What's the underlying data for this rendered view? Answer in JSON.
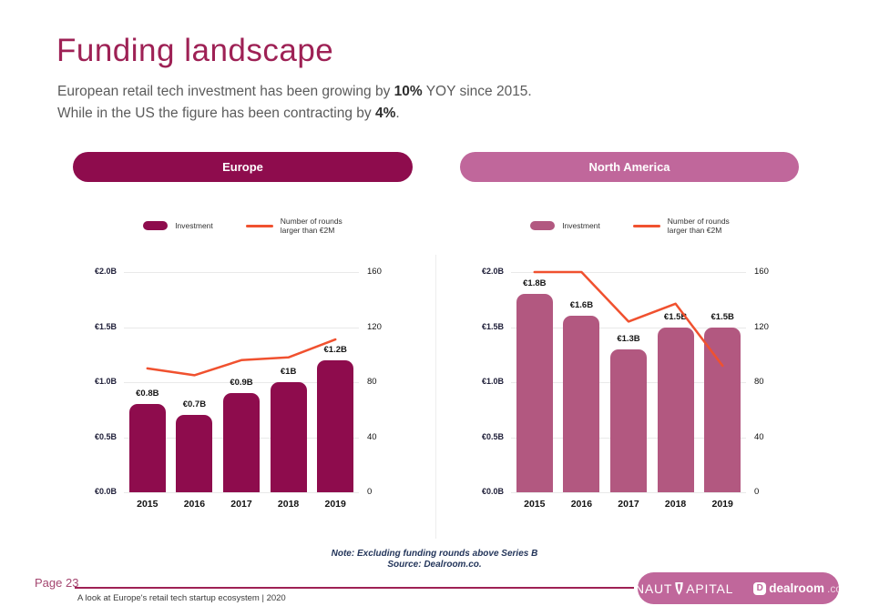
{
  "theme": {
    "title_color": "#9E2155",
    "europe_color": "#8E0C4D",
    "north_america_color": "#C0679B",
    "line_color": "#F0512F",
    "footer_rule_color": "#9E2155",
    "page_label_color": "#A44670"
  },
  "header": {
    "title": "Funding landscape",
    "subtitle_line1_prefix": "European retail tech investment has been growing by ",
    "subtitle_line1_bold": "10%",
    "subtitle_line1_suffix": " YOY since 2015.",
    "subtitle_line2_prefix": "While in the US the figure has been contracting by ",
    "subtitle_line2_bold": "4%",
    "subtitle_line2_suffix": "."
  },
  "chart_data": [
    {
      "type": "bar+line",
      "region": "Europe",
      "categories": [
        "2015",
        "2016",
        "2017",
        "2018",
        "2019"
      ],
      "series": [
        {
          "name": "Investment",
          "type": "bar",
          "unit": "EUR billions",
          "values": [
            0.8,
            0.7,
            0.9,
            1.0,
            1.2
          ],
          "labels": [
            "€0.8B",
            "€0.7B",
            "€0.9B",
            "€1B",
            "€1.2B"
          ],
          "color": "#8E0C4D",
          "axis": "left"
        },
        {
          "name": "Number of rounds larger than €2M",
          "type": "line",
          "values": [
            90,
            85,
            96,
            98,
            111
          ],
          "color": "#F0512F",
          "axis": "right"
        }
      ],
      "legend": {
        "bar": "Investment",
        "line_l1": "Number of rounds",
        "line_l2": "larger than €2M"
      },
      "left_axis": {
        "ticks": [
          "€2.0B",
          "€1.5B",
          "€1.0B",
          "€0.5B",
          "€0.0B"
        ],
        "max": 2.0,
        "min": 0
      },
      "right_axis": {
        "ticks": [
          "160",
          "120",
          "80",
          "40",
          "0"
        ],
        "max": 160,
        "min": 0
      },
      "grid": true
    },
    {
      "type": "bar+line",
      "region": "North America",
      "categories": [
        "2015",
        "2016",
        "2017",
        "2018",
        "2019"
      ],
      "series": [
        {
          "name": "Investment",
          "type": "bar",
          "unit": "EUR billions",
          "values": [
            1.8,
            1.6,
            1.3,
            1.5,
            1.5
          ],
          "labels": [
            "€1.8B",
            "€1.6B",
            "€1.3B",
            "€1.5B",
            "€1.5B"
          ],
          "color": "#B25880",
          "axis": "left"
        },
        {
          "name": "Number of rounds larger than €2M",
          "type": "line",
          "values": [
            160,
            160,
            124,
            137,
            92
          ],
          "color": "#F0512F",
          "axis": "right"
        }
      ],
      "legend": {
        "bar": "Investment",
        "line_l1": "Number of rounds",
        "line_l2": "larger than €2M"
      },
      "left_axis": {
        "ticks": [
          "€2.0B",
          "€1.5B",
          "€1.0B",
          "€0.5B",
          "€0.0B"
        ],
        "max": 2.0,
        "min": 0
      },
      "right_axis": {
        "ticks": [
          "160",
          "120",
          "80",
          "40",
          "0"
        ],
        "max": 160,
        "min": 0
      },
      "grid": true
    }
  ],
  "note": {
    "line1": "Note: Excluding funding rounds above Series B",
    "line2": "Source: Dealroom.co."
  },
  "footer": {
    "page_label": "Page 23",
    "doc_label": "A look at Europe's retail tech startup ecosystem  |  2020",
    "nauta_logo_part1": "NAUT",
    "nauta_logo_part2": "APITAL",
    "dealroom_badge_letter": "D",
    "dealroom_name": "dealroom",
    "dealroom_tld": ".co"
  }
}
